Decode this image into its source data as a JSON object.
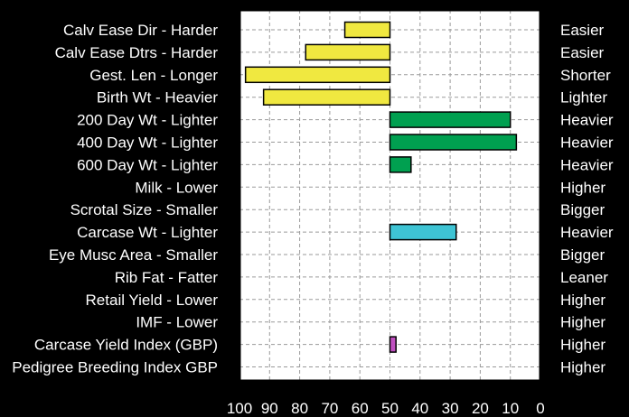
{
  "chart_data": {
    "type": "bar",
    "orientation": "horizontal",
    "x_axis_reversed": true,
    "xlim": [
      0,
      100
    ],
    "x_ticks": [
      "100",
      "90",
      "80",
      "70",
      "60",
      "50",
      "40",
      "30",
      "20",
      "10",
      "0"
    ],
    "grid": true,
    "categories": [
      "Calv Ease Dir - Harder",
      "Calv Ease Dtrs - Harder",
      "Gest. Len - Longer",
      "Birth Wt - Heavier",
      "200 Day Wt - Lighter",
      "400 Day Wt - Lighter",
      "600 Day Wt - Lighter",
      "Milk - Lower",
      "Scrotal Size - Smaller",
      "Carcase Wt - Lighter",
      "Eye Musc Area - Smaller",
      "Rib Fat - Fatter",
      "Retail Yield - Lower",
      "IMF - Lower",
      "Carcase Yield Index (GBP)",
      "Pedigree Breeding Index GBP"
    ],
    "right_labels": [
      "Easier",
      "Easier",
      "Shorter",
      "Lighter",
      "Heavier",
      "Heavier",
      "Heavier",
      "Higher",
      "Bigger",
      "Heavier",
      "Bigger",
      "Leaner",
      "Higher",
      "Higher",
      "Higher",
      "Higher"
    ],
    "bars": [
      {
        "start": 50,
        "end": 65,
        "color": "#f0e840"
      },
      {
        "start": 50,
        "end": 78,
        "color": "#f0e840"
      },
      {
        "start": 50,
        "end": 98,
        "color": "#f0e840"
      },
      {
        "start": 50,
        "end": 92,
        "color": "#f0e840"
      },
      {
        "start": 50,
        "end": 10,
        "color": "#00a050"
      },
      {
        "start": 50,
        "end": 8,
        "color": "#00a050"
      },
      {
        "start": 50,
        "end": 43,
        "color": "#00a050"
      },
      null,
      null,
      {
        "start": 50,
        "end": 28,
        "color": "#3ec4d4"
      },
      null,
      null,
      null,
      null,
      {
        "start": 50,
        "end": 48,
        "color": "#c050c0"
      },
      null
    ],
    "colors": {
      "background": "#000000",
      "plot_background": "#ffffff",
      "text": "#ffffff",
      "grid": "#9a9a9a"
    }
  }
}
